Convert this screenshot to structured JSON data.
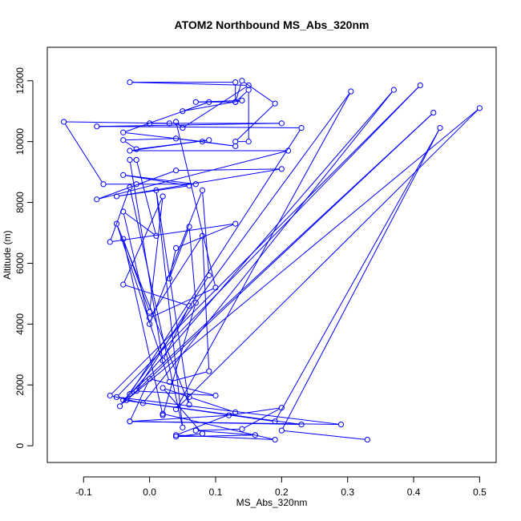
{
  "chart_data": {
    "type": "line",
    "title": "ATOM2 Northbound MS_Abs_320nm",
    "xlabel": "MS_Abs_320nm",
    "ylabel": "Altitude (m)",
    "xlim": [
      -0.155,
      0.525
    ],
    "ylim": [
      -550,
      13100
    ],
    "x_ticks": [
      -0.1,
      0.0,
      0.1,
      0.2,
      0.3,
      0.4,
      0.5
    ],
    "x_tick_labels": [
      "-0.1",
      "0.0",
      "0.1",
      "0.2",
      "0.3",
      "0.4",
      "0.5"
    ],
    "y_ticks": [
      0,
      2000,
      4000,
      6000,
      8000,
      10000,
      12000
    ],
    "y_tick_labels": [
      "0",
      "2000",
      "4000",
      "6000",
      "8000",
      "10000",
      "12000"
    ],
    "grid": false,
    "series_color": "#0000ff",
    "points": [
      [
        0.33,
        200
      ],
      [
        0.2,
        500
      ],
      [
        0.44,
        10450
      ],
      [
        0.19,
        800
      ],
      [
        -0.04,
        1500
      ],
      [
        0.23,
        700
      ],
      [
        -0.03,
        800
      ],
      [
        0.29,
        700
      ],
      [
        -0.05,
        1600
      ],
      [
        0.41,
        11850
      ],
      [
        -0.06,
        1650
      ],
      [
        -0.01,
        1400
      ],
      [
        0.37,
        11700
      ],
      [
        -0.045,
        1300
      ],
      [
        0.305,
        11650
      ],
      [
        0.04,
        1200
      ],
      [
        0.5,
        11100
      ],
      [
        -0.035,
        1500
      ],
      [
        0.43,
        10950
      ],
      [
        -0.03,
        1700
      ],
      [
        0.23,
        10450
      ],
      [
        -0.08,
        10500
      ],
      [
        0.2,
        10600
      ],
      [
        0.0,
        10600
      ],
      [
        0.03,
        10600
      ],
      [
        -0.13,
        10650
      ],
      [
        -0.07,
        8600
      ],
      [
        -0.02,
        8600
      ],
      [
        0.07,
        8600
      ],
      [
        -0.04,
        8900
      ],
      [
        0.06,
        8550
      ],
      [
        -0.05,
        8200
      ],
      [
        0.2,
        9100
      ],
      [
        0.04,
        9050
      ],
      [
        -0.08,
        8100
      ],
      [
        0.21,
        9700
      ],
      [
        -0.03,
        9700
      ],
      [
        0.09,
        10050
      ],
      [
        -0.02,
        9750
      ],
      [
        -0.04,
        10050
      ],
      [
        0.04,
        10100
      ],
      [
        0.13,
        9850
      ],
      [
        0.08,
        10000
      ],
      [
        -0.04,
        10300
      ],
      [
        0.09,
        11300
      ],
      [
        0.05,
        11000
      ],
      [
        0.14,
        11350
      ],
      [
        0.07,
        11300
      ],
      [
        0.13,
        11300
      ],
      [
        0.14,
        12000
      ],
      [
        0.19,
        11250
      ],
      [
        0.13,
        10000
      ],
      [
        0.15,
        10000
      ],
      [
        0.15,
        11700
      ],
      [
        0.13,
        11300
      ],
      [
        0.13,
        11950
      ],
      [
        -0.03,
        11950
      ],
      [
        0.15,
        11850
      ],
      [
        0.05,
        10450
      ],
      [
        0.04,
        10650
      ],
      [
        0.1,
        5200
      ],
      [
        0.0,
        4200
      ],
      [
        0.08,
        6900
      ],
      [
        0.09,
        2450
      ],
      [
        0.03,
        2100
      ],
      [
        -0.05,
        7300
      ],
      [
        0.06,
        1350
      ],
      [
        0.01,
        8400
      ],
      [
        0.05,
        600
      ],
      [
        -0.03,
        8500
      ],
      [
        -0.06,
        6700
      ],
      [
        0.13,
        7300
      ],
      [
        0.04,
        6500
      ],
      [
        0.03,
        5500
      ],
      [
        0.06,
        7200
      ],
      [
        0.07,
        4700
      ],
      [
        0.02,
        1000
      ],
      [
        -0.04,
        6800
      ],
      [
        0.0,
        4400
      ],
      [
        0.02,
        8200
      ],
      [
        -0.04,
        5300
      ],
      [
        0.06,
        4600
      ],
      [
        0.02,
        2800
      ],
      [
        -0.03,
        9400
      ],
      [
        -0.02,
        9400
      ],
      [
        0.01,
        6900
      ],
      [
        -0.04,
        7700
      ],
      [
        0.0,
        4000
      ],
      [
        0.08,
        8400
      ],
      [
        0.09,
        5600
      ],
      [
        -0.02,
        1800
      ],
      [
        0.1,
        1650
      ],
      [
        0.0,
        2200
      ],
      [
        -0.03,
        800
      ],
      [
        0.12,
        1000
      ],
      [
        0.2,
        1250
      ],
      [
        0.14,
        550
      ],
      [
        0.07,
        500
      ],
      [
        0.16,
        350
      ],
      [
        0.04,
        300
      ],
      [
        0.08,
        400
      ],
      [
        0.02,
        1900
      ],
      [
        0.06,
        1600
      ],
      [
        0.13,
        1100
      ],
      [
        0.04,
        350
      ],
      [
        0.19,
        200
      ],
      [
        0.02,
        1050
      ]
    ]
  }
}
